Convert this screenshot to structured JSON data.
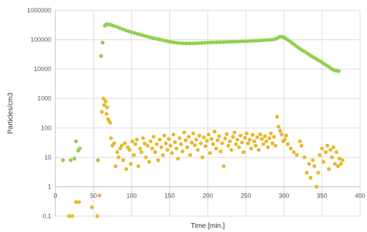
{
  "chart_data": {
    "type": "scatter",
    "title": "",
    "xlabel": "Time [min.]",
    "ylabel": "Particles/cm3",
    "xlim": [
      0,
      400
    ],
    "ylim": [
      0.1,
      1000000
    ],
    "y_scale": "log",
    "grid": true,
    "legend": "none",
    "x_ticks": [
      0,
      50,
      100,
      150,
      200,
      250,
      300,
      350,
      400
    ],
    "x_tick_labels": [
      "0",
      "50",
      "100",
      "150",
      "200",
      "250",
      "300",
      "350",
      "400"
    ],
    "y_ticks": [
      0.1,
      1,
      10,
      100,
      1000,
      10000,
      100000,
      1000000
    ],
    "y_tick_labels": [
      "0,1",
      "1",
      "10",
      "100",
      "1000",
      "10000",
      "100000",
      "1000000"
    ],
    "series": [
      {
        "color": "#92d050",
        "points": [
          [
            10,
            8
          ],
          [
            20,
            8
          ],
          [
            25,
            9
          ],
          [
            27,
            35
          ],
          [
            30,
            17
          ],
          [
            32,
            20
          ],
          [
            56,
            8
          ],
          [
            60,
            28000
          ],
          [
            62,
            80000
          ],
          [
            65,
            300000
          ],
          [
            67,
            340000
          ],
          [
            70,
            330000
          ],
          [
            73,
            320000
          ],
          [
            76,
            300000
          ],
          [
            80,
            280000
          ],
          [
            84,
            255000
          ],
          [
            88,
            230000
          ],
          [
            92,
            210000
          ],
          [
            96,
            195000
          ],
          [
            100,
            182000
          ],
          [
            104,
            170000
          ],
          [
            108,
            158000
          ],
          [
            112,
            148000
          ],
          [
            116,
            138000
          ],
          [
            120,
            130000
          ],
          [
            124,
            122000
          ],
          [
            128,
            115000
          ],
          [
            132,
            109000
          ],
          [
            136,
            103000
          ],
          [
            140,
            98000
          ],
          [
            144,
            93000
          ],
          [
            148,
            88000
          ],
          [
            152,
            84000
          ],
          [
            156,
            81000
          ],
          [
            160,
            79000
          ],
          [
            164,
            77000
          ],
          [
            168,
            76000
          ],
          [
            172,
            75000
          ],
          [
            176,
            75000
          ],
          [
            180,
            75000
          ],
          [
            184,
            76000
          ],
          [
            188,
            77000
          ],
          [
            192,
            78000
          ],
          [
            196,
            79000
          ],
          [
            200,
            80000
          ],
          [
            204,
            81000
          ],
          [
            208,
            82000
          ],
          [
            212,
            82000
          ],
          [
            216,
            83000
          ],
          [
            220,
            83000
          ],
          [
            224,
            84000
          ],
          [
            228,
            85000
          ],
          [
            232,
            86000
          ],
          [
            236,
            86000
          ],
          [
            240,
            87000
          ],
          [
            244,
            88000
          ],
          [
            248,
            89000
          ],
          [
            252,
            90000
          ],
          [
            256,
            91000
          ],
          [
            260,
            92000
          ],
          [
            264,
            93000
          ],
          [
            268,
            94000
          ],
          [
            272,
            96000
          ],
          [
            276,
            97000
          ],
          [
            280,
            99000
          ],
          [
            284,
            101000
          ],
          [
            288,
            104000
          ],
          [
            291,
            112000
          ],
          [
            294,
            125000
          ],
          [
            297,
            128000
          ],
          [
            300,
            122000
          ],
          [
            302,
            112000
          ],
          [
            305,
            100000
          ],
          [
            308,
            88000
          ],
          [
            311,
            77000
          ],
          [
            314,
            67000
          ],
          [
            317,
            59000
          ],
          [
            320,
            52000
          ],
          [
            323,
            46000
          ],
          [
            326,
            41000
          ],
          [
            329,
            37000
          ],
          [
            332,
            33000
          ],
          [
            335,
            29000
          ],
          [
            338,
            26000
          ],
          [
            341,
            23500
          ],
          [
            344,
            21000
          ],
          [
            347,
            19000
          ],
          [
            350,
            17000
          ],
          [
            353,
            15000
          ],
          [
            356,
            13500
          ],
          [
            359,
            12000
          ],
          [
            362,
            10500
          ],
          [
            365,
            9500
          ],
          [
            368,
            9000
          ],
          [
            370,
            8800
          ],
          [
            372,
            8600
          ]
        ]
      },
      {
        "color": "#e8b830",
        "points": [
          [
            18,
            0.1
          ],
          [
            22,
            0.1
          ],
          [
            27,
            0.3
          ],
          [
            31,
            0.3
          ],
          [
            48,
            0.2
          ],
          [
            55,
            0.1
          ],
          [
            58,
            0.5
          ],
          [
            61,
            350
          ],
          [
            63,
            1000
          ],
          [
            64,
            600
          ],
          [
            66,
            800
          ],
          [
            67,
            300
          ],
          [
            68,
            500
          ],
          [
            69,
            200
          ],
          [
            70,
            180
          ],
          [
            72,
            150
          ],
          [
            73,
            45
          ],
          [
            75,
            25
          ],
          [
            77,
            30
          ],
          [
            79,
            5
          ],
          [
            81,
            15
          ],
          [
            83,
            10
          ],
          [
            85,
            20
          ],
          [
            87,
            25
          ],
          [
            89,
            8
          ],
          [
            91,
            30
          ],
          [
            93,
            4
          ],
          [
            95,
            22
          ],
          [
            97,
            18
          ],
          [
            99,
            6
          ],
          [
            101,
            35
          ],
          [
            103,
            12
          ],
          [
            105,
            28
          ],
          [
            107,
            40
          ],
          [
            109,
            5
          ],
          [
            111,
            20
          ],
          [
            113,
            15
          ],
          [
            115,
            45
          ],
          [
            117,
            30
          ],
          [
            119,
            10
          ],
          [
            121,
            25
          ],
          [
            123,
            7
          ],
          [
            125,
            35
          ],
          [
            127,
            20
          ],
          [
            129,
            50
          ],
          [
            131,
            15
          ],
          [
            133,
            28
          ],
          [
            135,
            8
          ],
          [
            137,
            40
          ],
          [
            139,
            22
          ],
          [
            141,
            12
          ],
          [
            143,
            55
          ],
          [
            145,
            30
          ],
          [
            147,
            18
          ],
          [
            149,
            42
          ],
          [
            151,
            25
          ],
          [
            153,
            14
          ],
          [
            155,
            60
          ],
          [
            157,
            33
          ],
          [
            159,
            20
          ],
          [
            161,
            9
          ],
          [
            163,
            45
          ],
          [
            165,
            28
          ],
          [
            167,
            16
          ],
          [
            169,
            70
          ],
          [
            171,
            38
          ],
          [
            173,
            22
          ],
          [
            175,
            50
          ],
          [
            177,
            12
          ],
          [
            179,
            32
          ],
          [
            181,
            65
          ],
          [
            183,
            26
          ],
          [
            185,
            40
          ],
          [
            187,
            18
          ],
          [
            189,
            55
          ],
          [
            191,
            30
          ],
          [
            193,
            10
          ],
          [
            195,
            48
          ],
          [
            197,
            24
          ],
          [
            199,
            36
          ],
          [
            201,
            60
          ],
          [
            203,
            14
          ],
          [
            205,
            42
          ],
          [
            207,
            28
          ],
          [
            209,
            75
          ],
          [
            211,
            20
          ],
          [
            213,
            38
          ],
          [
            215,
            52
          ],
          [
            217,
            16
          ],
          [
            219,
            30
          ],
          [
            221,
            5
          ],
          [
            223,
            44
          ],
          [
            225,
            62
          ],
          [
            227,
            25
          ],
          [
            229,
            35
          ],
          [
            231,
            18
          ],
          [
            233,
            50
          ],
          [
            235,
            70
          ],
          [
            237,
            28
          ],
          [
            239,
            40
          ],
          [
            241,
            22
          ],
          [
            243,
            55
          ],
          [
            245,
            32
          ],
          [
            247,
            15
          ],
          [
            249,
            46
          ],
          [
            251,
            65
          ],
          [
            253,
            30
          ],
          [
            255,
            40
          ],
          [
            257,
            20
          ],
          [
            259,
            58
          ],
          [
            261,
            35
          ],
          [
            263,
            25
          ],
          [
            265,
            48
          ],
          [
            267,
            18
          ],
          [
            269,
            60
          ],
          [
            271,
            42
          ],
          [
            273,
            28
          ],
          [
            275,
            52
          ],
          [
            277,
            35
          ],
          [
            279,
            22
          ],
          [
            281,
            45
          ],
          [
            283,
            65
          ],
          [
            285,
            30
          ],
          [
            287,
            50
          ],
          [
            289,
            25
          ],
          [
            291,
            240
          ],
          [
            293,
            110
          ],
          [
            295,
            80
          ],
          [
            297,
            60
          ],
          [
            299,
            35
          ],
          [
            301,
            40
          ],
          [
            303,
            55
          ],
          [
            305,
            28
          ],
          [
            309,
            20
          ],
          [
            313,
            15
          ],
          [
            317,
            12
          ],
          [
            321,
            35
          ],
          [
            323,
            25
          ],
          [
            327,
            10
          ],
          [
            330,
            3
          ],
          [
            333,
            6
          ],
          [
            335,
            2
          ],
          [
            338,
            8
          ],
          [
            340,
            5
          ],
          [
            343,
            1
          ],
          [
            345,
            3
          ],
          [
            347,
            12
          ],
          [
            350,
            20
          ],
          [
            352,
            7
          ],
          [
            355,
            15
          ],
          [
            357,
            25
          ],
          [
            359,
            4
          ],
          [
            361,
            18
          ],
          [
            363,
            10
          ],
          [
            365,
            22
          ],
          [
            367,
            6
          ],
          [
            369,
            15
          ],
          [
            371,
            5
          ],
          [
            373,
            9
          ],
          [
            375,
            6
          ],
          [
            377,
            8
          ]
        ]
      }
    ]
  }
}
